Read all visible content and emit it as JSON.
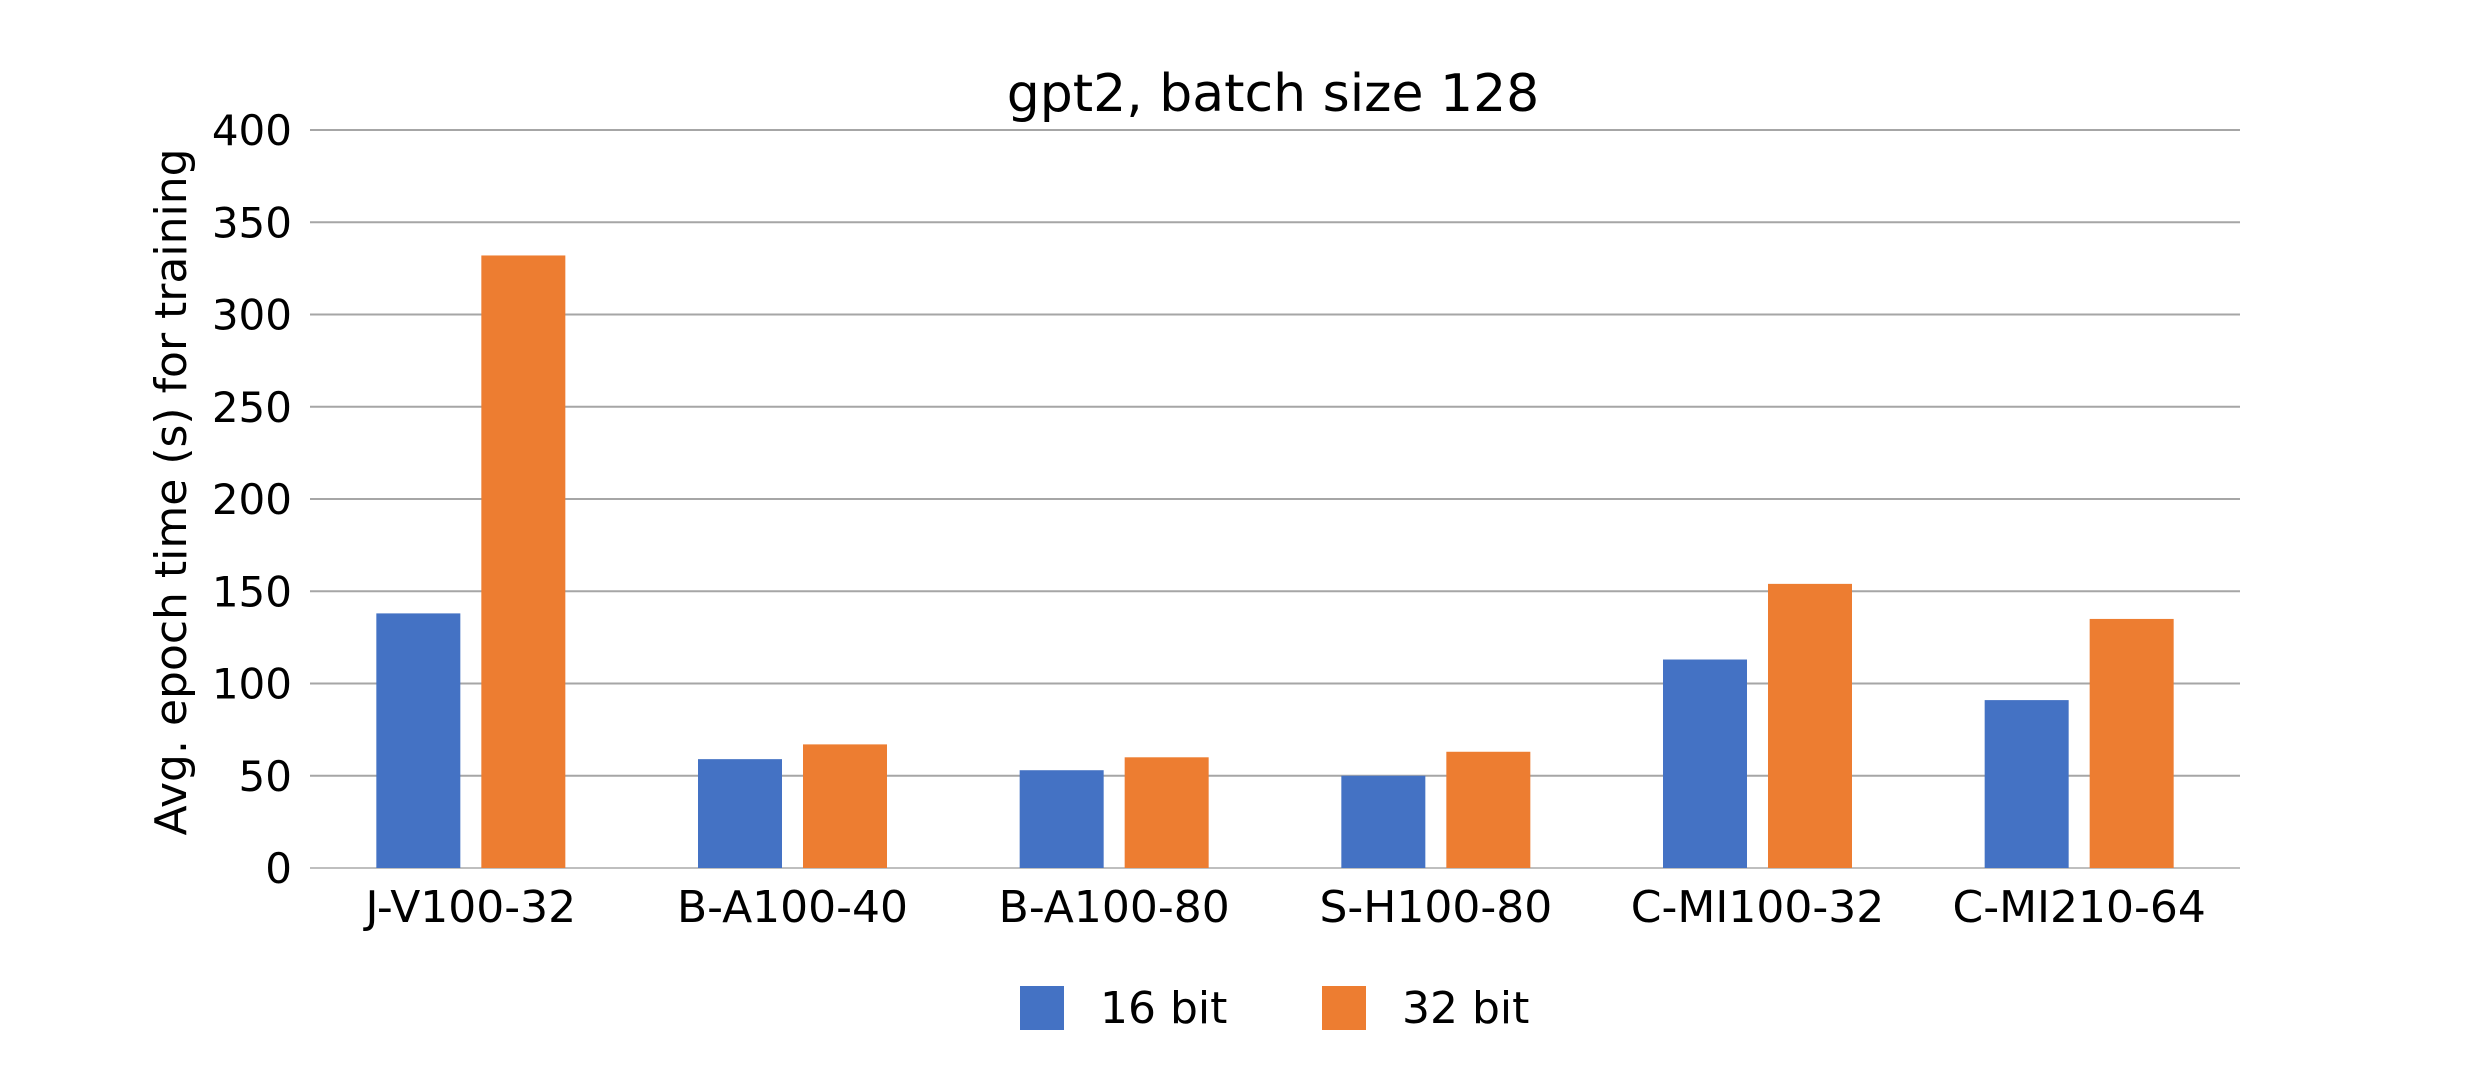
{
  "chart_data": {
    "type": "bar",
    "title": "gpt2, batch size 128",
    "xlabel": "",
    "ylabel": "Avg. epoch time (s) for training",
    "categories": [
      "J-V100-32",
      "B-A100-40",
      "B-A100-80",
      "S-H100-80",
      "C-MI100-32",
      "C-MI210-64"
    ],
    "series": [
      {
        "name": "16 bit",
        "color": "#4472C4",
        "values": [
          138,
          59,
          53,
          50,
          113,
          91
        ]
      },
      {
        "name": "32 bit",
        "color": "#ED7D31",
        "values": [
          332,
          67,
          60,
          63,
          154,
          135
        ]
      }
    ],
    "ylim": [
      0,
      400
    ],
    "yticks": [
      0,
      50,
      100,
      150,
      200,
      250,
      300,
      350,
      400
    ],
    "grid": true,
    "legend_position": "bottom"
  }
}
